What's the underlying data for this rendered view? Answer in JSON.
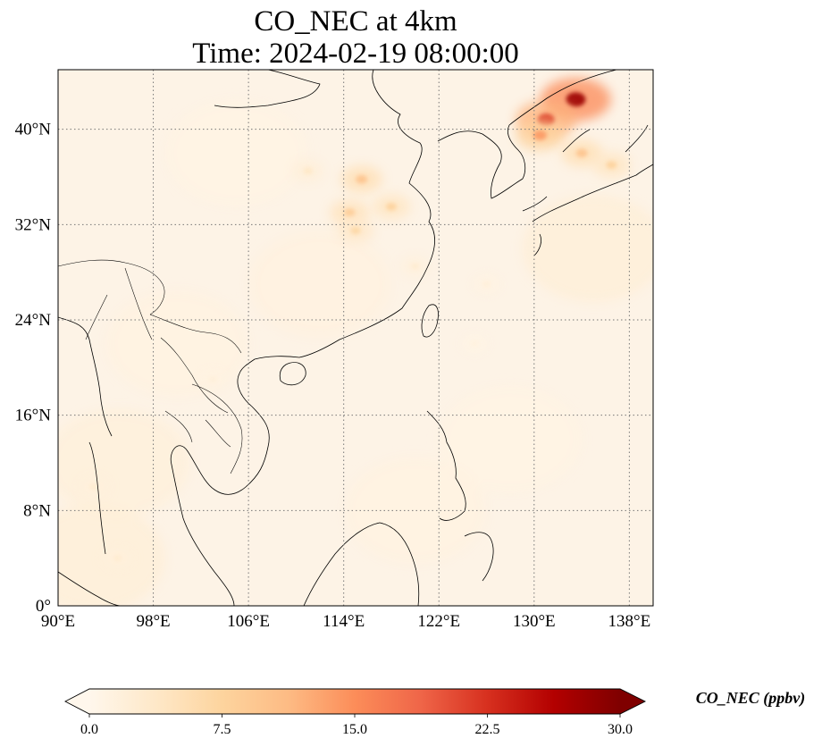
{
  "chart_data": {
    "type": "heatmap",
    "title_line1": "CO_NEC at 4km",
    "title_line2": "Time: 2024-02-19 08:00:00",
    "x_ticks": [
      "90°E",
      "98°E",
      "106°E",
      "114°E",
      "122°E",
      "130°E",
      "138°E"
    ],
    "x_tick_values": [
      90,
      98,
      106,
      114,
      122,
      130,
      138
    ],
    "y_ticks": [
      "0°",
      "8°N",
      "16°N",
      "24°N",
      "32°N",
      "40°N"
    ],
    "y_tick_values": [
      0,
      8,
      16,
      24,
      32,
      40
    ],
    "xlim": [
      90,
      140
    ],
    "ylim": [
      0,
      45
    ],
    "grid": true,
    "colorbar": {
      "label": "CO_NEC (ppbv)",
      "ticks": [
        "0.0",
        "7.5",
        "15.0",
        "22.5",
        "30.0"
      ],
      "tick_values": [
        0,
        7.5,
        15,
        22.5,
        30
      ],
      "range": [
        0,
        30
      ],
      "extend": "both",
      "colormap": "OrRd",
      "colors": [
        "#fff7ec",
        "#fee8c8",
        "#fdd49e",
        "#fdbb84",
        "#fc8d59",
        "#ef6548",
        "#d7301f",
        "#b30000",
        "#7f0000"
      ]
    },
    "plumes": [
      {
        "lon": 133.5,
        "lat": 42.5,
        "value": 28
      },
      {
        "lon": 131.0,
        "lat": 40.8,
        "value": 22
      },
      {
        "lon": 130.5,
        "lat": 39.5,
        "value": 14
      },
      {
        "lon": 134.0,
        "lat": 38.0,
        "value": 10
      },
      {
        "lon": 136.5,
        "lat": 37.0,
        "value": 8
      },
      {
        "lon": 115.5,
        "lat": 35.8,
        "value": 10
      },
      {
        "lon": 114.5,
        "lat": 33.0,
        "value": 9
      },
      {
        "lon": 118.0,
        "lat": 33.5,
        "value": 8
      },
      {
        "lon": 115.0,
        "lat": 31.5,
        "value": 7
      },
      {
        "lon": 111.0,
        "lat": 36.5,
        "value": 4
      },
      {
        "lon": 120.0,
        "lat": 28.5,
        "value": 3
      },
      {
        "lon": 126.0,
        "lat": 27.0,
        "value": 2
      },
      {
        "lon": 93.0,
        "lat": 10.0,
        "value": 3
      },
      {
        "lon": 95.0,
        "lat": 4.0,
        "value": 3
      },
      {
        "lon": 103.0,
        "lat": 19.0,
        "value": 2
      },
      {
        "lon": 125.0,
        "lat": 22.0,
        "value": 1.5
      }
    ]
  }
}
